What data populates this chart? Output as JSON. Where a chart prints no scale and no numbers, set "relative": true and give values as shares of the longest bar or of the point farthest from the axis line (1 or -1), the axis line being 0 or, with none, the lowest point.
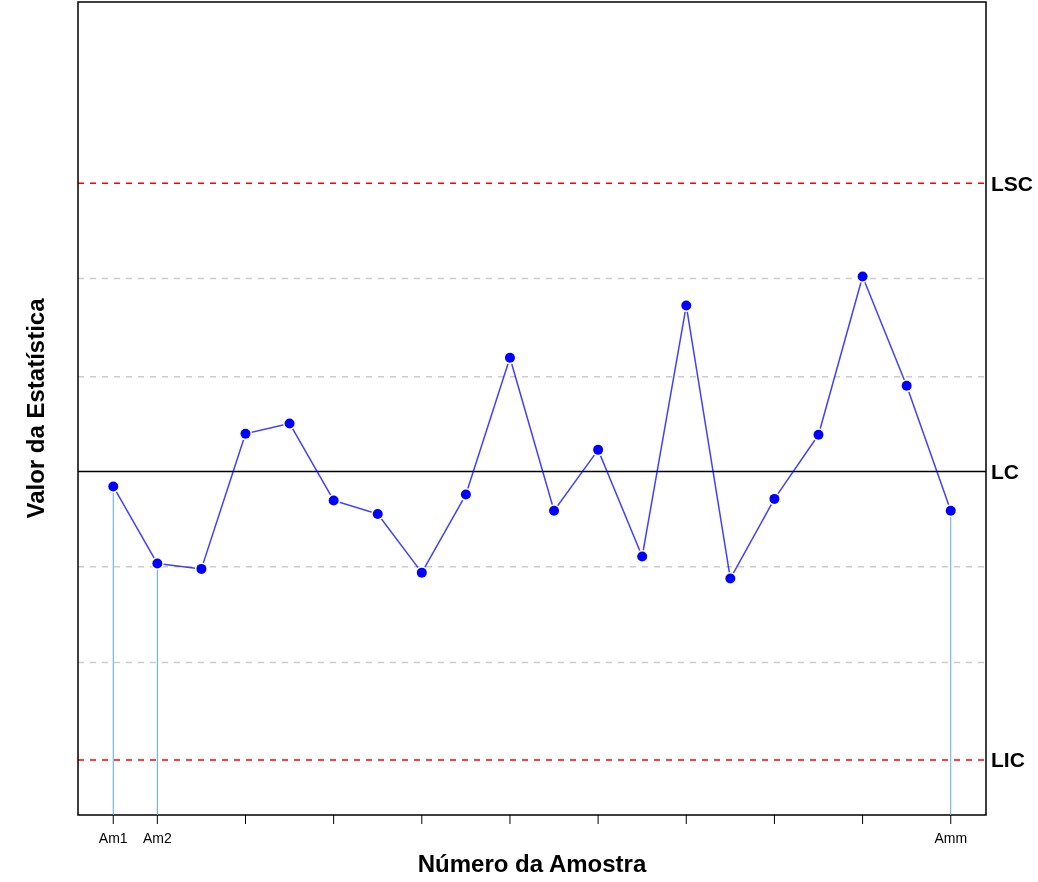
{
  "chart_data": {
    "type": "line",
    "relative": true,
    "xlabel": "Número da Amostra",
    "ylabel": "Valor da Estatística",
    "categories": [
      "Am1",
      "Am2",
      null,
      null,
      null,
      null,
      null,
      null,
      null,
      null,
      null,
      null,
      null,
      null,
      null,
      null,
      null,
      null,
      null,
      "Amm"
    ],
    "series": [
      {
        "color": "#0000ff",
        "values": [
          0.61,
          0.467,
          0.457,
          0.708,
          0.727,
          0.584,
          0.559,
          0.45,
          0.595,
          0.849,
          0.565,
          0.678,
          0.48,
          0.946,
          0.439,
          0.587,
          0.706,
          1.0,
          0.797,
          0.565
        ]
      }
    ],
    "marker": "circle",
    "line_style": "solid",
    "tick_labels": "x",
    "ref_lines": [
      {
        "axis": "y",
        "value": 1.173,
        "label": "LSC",
        "color": "#ff0000",
        "line_style": "dashed"
      },
      {
        "axis": "y",
        "value": 0.638,
        "label": "LC",
        "color": "#000000",
        "line_style": "solid"
      },
      {
        "axis": "y",
        "value": 0.102,
        "label": "LIC",
        "color": "#ff0000",
        "line_style": "dashed"
      },
      {
        "axis": "y",
        "value": 0.996,
        "label": null,
        "color": "#cccccc",
        "line_style": "dashed"
      },
      {
        "axis": "y",
        "value": 0.814,
        "label": null,
        "color": "#cccccc",
        "line_style": "dashed"
      },
      {
        "axis": "y",
        "value": 0.461,
        "label": null,
        "color": "#cccccc",
        "line_style": "dashed"
      },
      {
        "axis": "y",
        "value": 0.283,
        "label": null,
        "color": "#cccccc",
        "line_style": "dashed"
      },
      {
        "axis": "x",
        "value": "Am1",
        "color": "#5aa9e6",
        "line_style": "solid"
      },
      {
        "axis": "x",
        "value": "Am2",
        "color": "#5aa9e6",
        "line_style": "solid"
      },
      {
        "axis": "x",
        "value": "Amm",
        "color": "#5aa9e6",
        "line_style": "solid"
      }
    ]
  }
}
